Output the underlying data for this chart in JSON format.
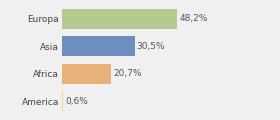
{
  "categories": [
    "Europa",
    "Asia",
    "Africa",
    "America"
  ],
  "values": [
    48.2,
    30.5,
    20.7,
    0.6
  ],
  "labels": [
    "48,2%",
    "30,5%",
    "20,7%",
    "0,6%"
  ],
  "bar_colors": [
    "#b5c98e",
    "#6e8ebf",
    "#e8b07a",
    "#f0d98c"
  ],
  "background_color": "#f0f0f0",
  "xlim": [
    0,
    70
  ],
  "label_fontsize": 6.5,
  "tick_fontsize": 6.5
}
